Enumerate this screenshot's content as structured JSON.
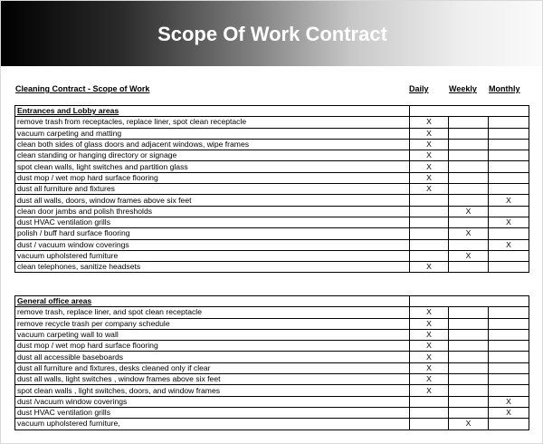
{
  "title": "Scope Of Work Contract",
  "subtitle": "Cleaning Contract - Scope of Work",
  "columns": {
    "daily": "Daily",
    "weekly": "Weekly",
    "monthly": "Monthly"
  },
  "mark": "X",
  "sections": [
    {
      "name": "Entrances and Lobby areas",
      "rows": [
        {
          "task": "remove trash from receptacles, replace liner, spot clean receptacle",
          "freq": "daily"
        },
        {
          "task": "vacuum carpeting and matting",
          "freq": "daily"
        },
        {
          "task": "clean both sides of glass doors and adjacent windows, wipe frames",
          "freq": "daily"
        },
        {
          "task": "clean standing or hanging directory or signage",
          "freq": "daily"
        },
        {
          "task": "spot clean walls, light switches and partition glass",
          "freq": "daily"
        },
        {
          "task": "dust mop / wet mop hard surface flooring",
          "freq": "daily"
        },
        {
          "task": "dust all furniture and fixtures",
          "freq": "daily"
        },
        {
          "task": "dust all walls, doors, window frames above six feet",
          "freq": "monthly"
        },
        {
          "task": "clean door jambs and polish thresholds",
          "freq": "weekly"
        },
        {
          "task": "dust HVAC ventilation grills",
          "freq": "monthly"
        },
        {
          "task": "polish / buff hard surface flooring",
          "freq": "weekly"
        },
        {
          "task": "dust / vacuum window coverings",
          "freq": "monthly"
        },
        {
          "task": "vacuum upholstered furniture",
          "freq": "weekly"
        },
        {
          "task": "clean telephones, sanitize headsets",
          "freq": "daily"
        }
      ]
    },
    {
      "name": "General office areas",
      "rows": [
        {
          "task": "remove trash, replace liner, and spot clean receptacle",
          "freq": "daily"
        },
        {
          "task": "remove recycle trash per company schedule",
          "freq": "daily"
        },
        {
          "task": "vacuum carpeting wall to wall",
          "freq": "daily"
        },
        {
          "task": "dust mop / wet mop hard surface flooring",
          "freq": "daily"
        },
        {
          "task": "dust all accessible baseboards",
          "freq": "daily"
        },
        {
          "task": "dust all furniture and fixtures, desks cleaned only if clear",
          "freq": "daily"
        },
        {
          "task": "dust all walls, light switches , window frames above six feet",
          "freq": "daily"
        },
        {
          "task": "spot clean walls , light switches, doors, and window frames",
          "freq": "daily"
        },
        {
          "task": "dust /vacuum window coverings",
          "freq": "monthly"
        },
        {
          "task": "dust HVAC ventilation grills",
          "freq": "monthly"
        },
        {
          "task": "vacuum upholstered furniture,",
          "freq": "weekly"
        }
      ]
    }
  ]
}
